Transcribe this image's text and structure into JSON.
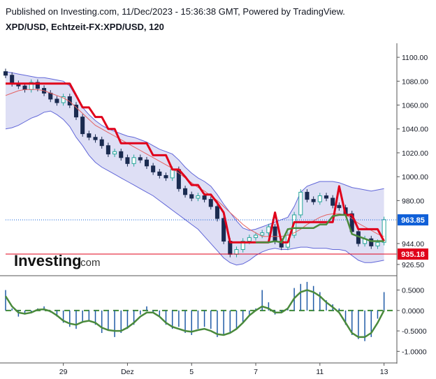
{
  "header": {
    "published": "Published on Investing.com, 11/Dec/2023 - 15:36:38 GMT, Powered by TradingView.",
    "symbol": "XPD/USD, Echtzeit-FX:XPD/USD, 120"
  },
  "logo": {
    "brand": "Investing",
    "suffix": ".com"
  },
  "colors": {
    "candle_up": "#26a69a",
    "candle_down": "#1a2b50",
    "band_fill": "#dedff5",
    "band_line": "#6066d8",
    "red_line": "#e0001a",
    "ma_line": "#e56262",
    "green_line": "#4a8a3c",
    "macd_hist": "#1f5aa6",
    "last_price_tag": "#1060d8",
    "level_tag": "#e0001a"
  },
  "chart_data": [
    {
      "type": "candlestick",
      "title": "XPD/USD, Echtzeit-FX:XPD/USD, 120",
      "ylim": [
        920,
        1110
      ],
      "y_ticks": [
        "1100.00",
        "1080.00",
        "1060.00",
        "1040.00",
        "1020.00",
        "1000.00",
        "980.00",
        "944.00",
        "926.50"
      ],
      "y_tick_values": [
        1100,
        1080,
        1060,
        1040,
        1020,
        1000,
        980,
        944,
        926.5
      ],
      "x_ticks": [
        "29",
        "Dez",
        "5",
        "7",
        "11",
        "13"
      ],
      "x_tick_positions": [
        10,
        20,
        30,
        40,
        50,
        60
      ],
      "x_range": [
        1,
        62
      ],
      "last_price": {
        "label": "963.85",
        "value": 963.85
      },
      "horizontal_level": {
        "label": "935.18",
        "value": 935.18
      },
      "close": [
        1085,
        1078,
        1076,
        1073,
        1079,
        1074,
        1070,
        1065,
        1062,
        1067,
        1060,
        1050,
        1036,
        1033,
        1031,
        1026,
        1019,
        1021,
        1016,
        1011,
        1016,
        1014,
        1009,
        1004,
        1001,
        999,
        1006,
        990,
        985,
        982,
        984,
        981,
        975,
        965,
        946,
        935,
        939,
        946,
        949,
        951,
        953,
        958,
        946,
        941,
        951,
        968,
        987,
        981,
        979,
        984,
        982,
        976,
        974,
        969,
        954,
        944,
        948,
        942,
        945,
        964
      ],
      "bb_upper": [
        1088,
        1087,
        1086,
        1085,
        1084,
        1083,
        1083,
        1082,
        1081,
        1080,
        1076,
        1067,
        1058,
        1052,
        1047,
        1043,
        1040,
        1038,
        1036,
        1034,
        1033,
        1031,
        1029,
        1026,
        1023,
        1021,
        1019,
        1014,
        1008,
        1003,
        999,
        996,
        992,
        985,
        977,
        970,
        963,
        957,
        955,
        956,
        958,
        960,
        962,
        964,
        966,
        975,
        987,
        992,
        994,
        996,
        996,
        996,
        995,
        993,
        991,
        990,
        989,
        988,
        989,
        990
      ],
      "bb_lower": [
        1040,
        1041,
        1043,
        1046,
        1049,
        1051,
        1054,
        1055,
        1052,
        1048,
        1042,
        1033,
        1026,
        1018,
        1012,
        1008,
        1005,
        1002,
        999,
        996,
        993,
        990,
        987,
        984,
        980,
        976,
        972,
        968,
        964,
        960,
        956,
        950,
        944,
        938,
        932,
        928,
        926,
        927,
        930,
        934,
        937,
        939,
        940,
        939,
        939,
        940,
        941,
        941,
        940,
        940,
        940,
        939,
        939,
        938,
        934,
        930,
        928,
        928,
        929,
        930
      ],
      "ma": [
        1068,
        1070,
        1072,
        1073,
        1073,
        1073,
        1072,
        1070,
        1068,
        1066,
        1063,
        1058,
        1053,
        1048,
        1043,
        1040,
        1037,
        1034,
        1031,
        1028,
        1025,
        1022,
        1019,
        1016,
        1013,
        1010,
        1007,
        1003,
        999,
        995,
        991,
        988,
        984,
        980,
        975,
        970,
        965,
        960,
        956,
        953,
        950,
        950,
        950,
        950,
        951,
        953,
        956,
        960,
        963,
        966,
        968,
        969,
        969,
        968,
        965,
        961,
        958,
        955,
        952,
        950
      ],
      "stop_line": [
        1078,
        1078,
        1078,
        1078,
        1078,
        1078,
        1078,
        1078,
        1078,
        1078,
        1078,
        1068,
        1058,
        1058,
        1050,
        1050,
        1040,
        1040,
        1028,
        1028,
        1028,
        1028,
        1028,
        1018,
        1018,
        1018,
        1006,
        1006,
        1000,
        993,
        993,
        985,
        985,
        978,
        970,
        945,
        945,
        945,
        945,
        945,
        945,
        945,
        970,
        945,
        945,
        962,
        962,
        962,
        962,
        962,
        962,
        962,
        992,
        968,
        968,
        956,
        956,
        956,
        956,
        946
      ],
      "green_segment": {
        "start_index": 39,
        "values": [
          945,
          945,
          945,
          946,
          945,
          956,
          957,
          957,
          957,
          957,
          960,
          960,
          967,
          968,
          968,
          952,
          950,
          948,
          946,
          946,
          946
        ]
      }
    },
    {
      "type": "bar",
      "ylim": [
        -1.25,
        0.8
      ],
      "y_ticks": [
        "0.5000",
        "0.0000",
        "-0.5000",
        "-1.0000"
      ],
      "y_tick_values": [
        0.5,
        0.0,
        -0.5,
        -1.0
      ],
      "zero_line": 0.0,
      "histogram": [
        0.5,
        0.05,
        -0.15,
        -0.1,
        -0.05,
        0.05,
        0.1,
        -0.05,
        -0.15,
        -0.3,
        -0.4,
        -0.45,
        -0.3,
        -0.25,
        -0.35,
        -0.55,
        -0.5,
        -0.65,
        -0.55,
        -0.45,
        -0.35,
        -0.1,
        0.1,
        -0.05,
        -0.15,
        -0.35,
        -0.45,
        -0.4,
        -0.55,
        -0.6,
        -0.45,
        -0.4,
        -0.45,
        -0.65,
        -0.6,
        -0.55,
        -0.45,
        -0.3,
        -0.1,
        0.05,
        0.5,
        0.2,
        -0.1,
        -0.05,
        0.05,
        0.55,
        0.65,
        0.7,
        0.6,
        0.45,
        0.25,
        0.15,
        0.05,
        -0.35,
        -0.6,
        -0.7,
        -0.75,
        -0.65,
        -0.2,
        0.45
      ],
      "oscillator": [
        0.35,
        0.1,
        -0.05,
        -0.08,
        -0.05,
        0.02,
        0.03,
        -0.02,
        -0.12,
        -0.25,
        -0.32,
        -0.35,
        -0.28,
        -0.25,
        -0.3,
        -0.42,
        -0.48,
        -0.5,
        -0.5,
        -0.42,
        -0.3,
        -0.15,
        -0.05,
        -0.05,
        -0.15,
        -0.3,
        -0.4,
        -0.45,
        -0.5,
        -0.52,
        -0.48,
        -0.45,
        -0.5,
        -0.58,
        -0.6,
        -0.55,
        -0.45,
        -0.3,
        -0.12,
        0.0,
        0.1,
        0.05,
        -0.05,
        -0.05,
        0.05,
        0.3,
        0.45,
        0.5,
        0.45,
        0.35,
        0.2,
        0.08,
        -0.05,
        -0.3,
        -0.55,
        -0.65,
        -0.65,
        -0.55,
        -0.3,
        0.0
      ]
    }
  ]
}
